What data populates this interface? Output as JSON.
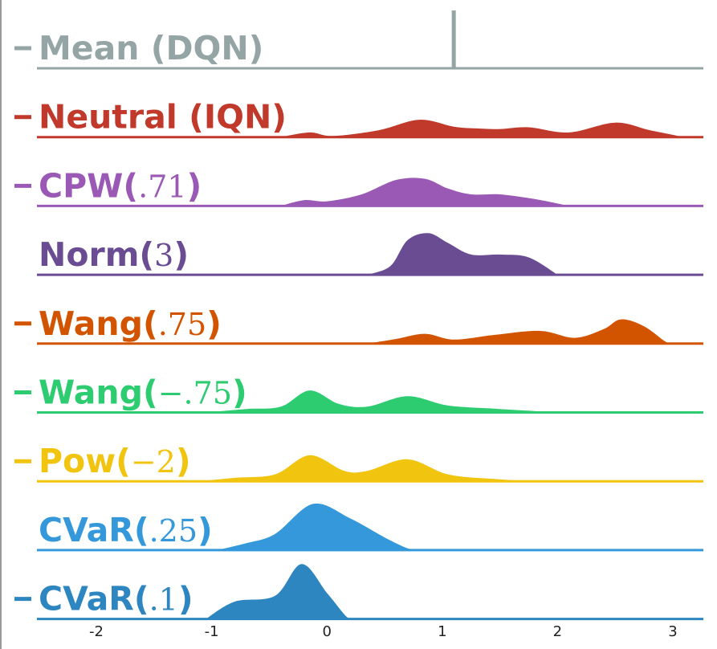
{
  "chart_data": {
    "type": "ridgeline",
    "title": "",
    "xlabel": "",
    "ylabel": "",
    "xlim": [
      -2.5,
      3.25
    ],
    "x_ticks": [
      {
        "value": -2,
        "label": "-2"
      },
      {
        "value": -1,
        "label": "-1"
      },
      {
        "value": 0,
        "label": "0"
      },
      {
        "value": 1,
        "label": "1"
      },
      {
        "value": 2,
        "label": "2"
      },
      {
        "value": 3,
        "label": "3"
      }
    ],
    "series": [
      {
        "id": "mean-dqn",
        "name": "Mean (DQN)",
        "bold": "Mean (DQN)",
        "param": "",
        "close": "",
        "color": "#95a5a6",
        "marker": true,
        "kind": "mean",
        "mean": 1.1
      },
      {
        "id": "neutral-iqn",
        "name": "Neutral (IQN)",
        "bold": "Neutral (IQN)",
        "param": "",
        "close": "",
        "color": "#c0392b",
        "marker": true,
        "kind": "density",
        "points": [
          [
            -0.4,
            0
          ],
          [
            -0.15,
            0.08
          ],
          [
            0.05,
            0.02
          ],
          [
            0.45,
            0.12
          ],
          [
            0.8,
            0.3
          ],
          [
            1.1,
            0.18
          ],
          [
            1.3,
            0.15
          ],
          [
            1.5,
            0.14
          ],
          [
            1.75,
            0.17
          ],
          [
            2.1,
            0.08
          ],
          [
            2.5,
            0.25
          ],
          [
            2.8,
            0.12
          ],
          [
            3.1,
            0
          ]
        ]
      },
      {
        "id": "cpw-71",
        "name": "CPW(.71)",
        "bold": "CPW(",
        "param": ".71",
        "close": ")",
        "color": "#9b59b6",
        "marker": true,
        "kind": "density",
        "points": [
          [
            -0.4,
            0
          ],
          [
            -0.2,
            0.1
          ],
          [
            0,
            0.08
          ],
          [
            0.3,
            0.2
          ],
          [
            0.6,
            0.45
          ],
          [
            0.85,
            0.47
          ],
          [
            1.05,
            0.3
          ],
          [
            1.25,
            0.2
          ],
          [
            1.5,
            0.2
          ],
          [
            1.8,
            0.12
          ],
          [
            2.1,
            0
          ]
        ]
      },
      {
        "id": "norm-3",
        "name": "Norm(3)",
        "bold": "Norm(",
        "param": "3",
        "close": ")",
        "color": "#6a4c93",
        "marker": false,
        "kind": "density",
        "points": [
          [
            0.35,
            0
          ],
          [
            0.55,
            0.15
          ],
          [
            0.7,
            0.6
          ],
          [
            0.88,
            0.72
          ],
          [
            1.05,
            0.55
          ],
          [
            1.25,
            0.35
          ],
          [
            1.5,
            0.35
          ],
          [
            1.75,
            0.3
          ],
          [
            2,
            0
          ]
        ]
      },
      {
        "id": "wang-75",
        "name": "Wang(.75)",
        "bold": "Wang(",
        "param": ".75",
        "close": ")",
        "color": "#d35400",
        "marker": true,
        "kind": "density",
        "points": [
          [
            0.35,
            0
          ],
          [
            0.6,
            0.08
          ],
          [
            0.85,
            0.17
          ],
          [
            1.1,
            0.07
          ],
          [
            1.45,
            0.15
          ],
          [
            1.85,
            0.22
          ],
          [
            2.15,
            0.1
          ],
          [
            2.4,
            0.25
          ],
          [
            2.55,
            0.42
          ],
          [
            2.75,
            0.3
          ],
          [
            2.95,
            0.02
          ],
          [
            3.05,
            0
          ]
        ]
      },
      {
        "id": "wang-neg75",
        "name": "Wang(−.75)",
        "bold": "Wang(",
        "param": "−.75",
        "close": ")",
        "color": "#2ecc71",
        "marker": true,
        "kind": "density",
        "points": [
          [
            -1.05,
            0
          ],
          [
            -0.7,
            0.06
          ],
          [
            -0.4,
            0.1
          ],
          [
            -0.15,
            0.38
          ],
          [
            0.1,
            0.15
          ],
          [
            0.35,
            0.1
          ],
          [
            0.7,
            0.28
          ],
          [
            1.05,
            0.12
          ],
          [
            1.5,
            0.06
          ],
          [
            2,
            0
          ]
        ]
      },
      {
        "id": "pow-neg2",
        "name": "Pow(−2)",
        "bold": "Pow(",
        "param": "−2",
        "close": ")",
        "color": "#f1c40f",
        "marker": true,
        "kind": "density",
        "points": [
          [
            -1.1,
            0
          ],
          [
            -0.8,
            0.06
          ],
          [
            -0.45,
            0.12
          ],
          [
            -0.15,
            0.45
          ],
          [
            0.15,
            0.18
          ],
          [
            0.35,
            0.18
          ],
          [
            0.7,
            0.38
          ],
          [
            1.05,
            0.12
          ],
          [
            1.45,
            0.04
          ],
          [
            1.8,
            0
          ]
        ]
      },
      {
        "id": "cvar-25",
        "name": "CVaR(.25)",
        "bold": "CVaR(",
        "param": ".25",
        "close": ")",
        "color": "#3498db",
        "marker": false,
        "kind": "density",
        "points": [
          [
            -0.95,
            0
          ],
          [
            -0.7,
            0.12
          ],
          [
            -0.45,
            0.28
          ],
          [
            -0.12,
            0.8
          ],
          [
            0.2,
            0.55
          ],
          [
            0.5,
            0.22
          ],
          [
            0.7,
            0.03
          ],
          [
            0.8,
            0
          ]
        ]
      },
      {
        "id": "cvar-1",
        "name": "CVaR(.1)",
        "bold": "CVaR(",
        "param": ".1",
        "close": ")",
        "color": "#2e86c1",
        "marker": true,
        "kind": "density",
        "points": [
          [
            -1.05,
            0
          ],
          [
            -0.8,
            0.3
          ],
          [
            -0.45,
            0.4
          ],
          [
            -0.22,
            0.95
          ],
          [
            0,
            0.45
          ],
          [
            0.15,
            0.08
          ],
          [
            0.2,
            0
          ]
        ]
      }
    ]
  }
}
